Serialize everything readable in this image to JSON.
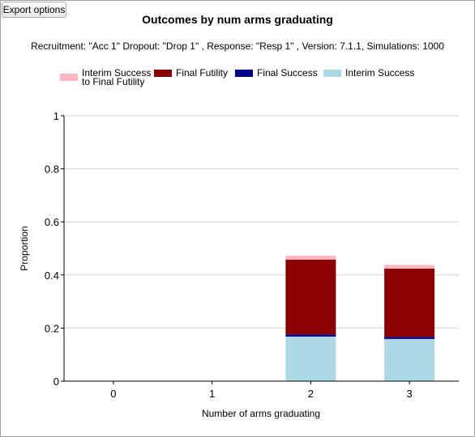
{
  "toolbar": {
    "export_label": "Export options"
  },
  "colors": {
    "interim_success_to_final_futility": "#ffb6c1",
    "final_futility": "#8b0000",
    "final_success": "#00008b",
    "interim_success": "#add8e6",
    "grid": "#d3d3d3",
    "axis": "#000000"
  },
  "chart_data": {
    "type": "bar",
    "stacked": true,
    "title": "Outcomes by num arms graduating",
    "subtitle": "Recruitment: \"Acc 1\" Dropout: \"Drop 1\" , Response: \"Resp 1\" , Version: 7.1.1, Simulations: 1000",
    "xlabel": "Number of arms graduating",
    "ylabel": "Proportion",
    "ylim": [
      0,
      1
    ],
    "yticks": [
      "0",
      "0.2",
      "0.4",
      "0.6",
      "0.8",
      "1"
    ],
    "ytick_values": [
      0,
      0.2,
      0.4,
      0.6,
      0.8,
      1
    ],
    "categories": [
      "0",
      "1",
      "2",
      "3"
    ],
    "grid": true,
    "legend_position": "top",
    "legend": [
      {
        "label_line1": "Interim Success",
        "label_line2": "to Final Futility",
        "color_key": "interim_success_to_final_futility"
      },
      {
        "label_line1": "Final Futility",
        "label_line2": "",
        "color_key": "final_futility"
      },
      {
        "label_line1": "Final Success",
        "label_line2": "",
        "color_key": "final_success"
      },
      {
        "label_line1": "Interim Success",
        "label_line2": "",
        "color_key": "interim_success"
      }
    ],
    "series": [
      {
        "name": "Interim Success",
        "color_key": "interim_success",
        "values": [
          0,
          0,
          0.168,
          0.159
        ]
      },
      {
        "name": "Final Success",
        "color_key": "final_success",
        "values": [
          0,
          0,
          0.008,
          0.008
        ]
      },
      {
        "name": "Final Futility",
        "color_key": "final_futility",
        "values": [
          0,
          0,
          0.282,
          0.257
        ]
      },
      {
        "name": "Interim Success\nto Final Futility",
        "color_key": "interim_success_to_final_futility",
        "values": [
          0,
          0,
          0.015,
          0.014
        ]
      }
    ]
  }
}
